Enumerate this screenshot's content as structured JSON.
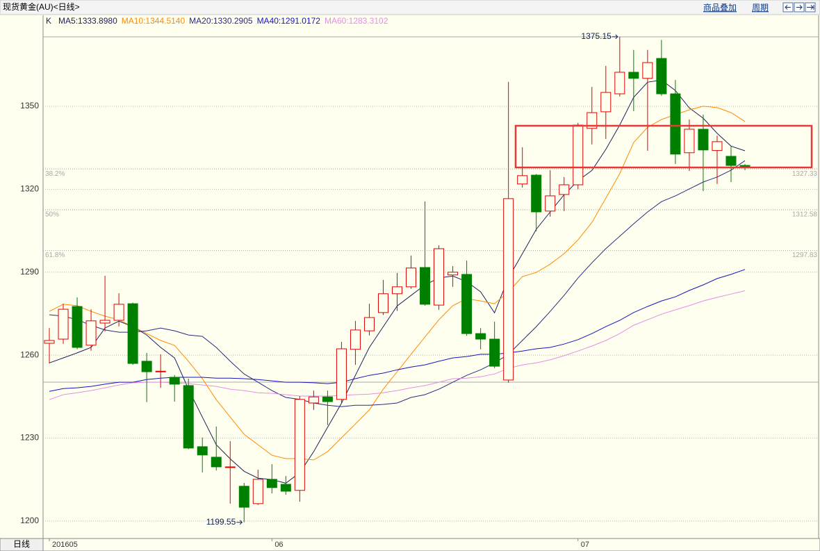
{
  "header": {
    "title": "现货黄金(AU)<日线>",
    "overlay": "商品叠加",
    "period": "周期"
  },
  "footer": {
    "tab": "日线"
  },
  "chart_data": {
    "type": "candlestick",
    "candle_name": "K",
    "up_color": "#e00000",
    "down_color": "#008000",
    "ylim": [
      1193.7,
      1382.9
    ],
    "yticks": [
      1200,
      1230,
      1260,
      1290,
      1320,
      1350
    ],
    "grid": true,
    "categories": [
      "201605",
      null,
      null,
      null,
      null,
      null,
      null,
      null,
      null,
      null,
      null,
      null,
      null,
      null,
      null,
      null,
      "06",
      null,
      null,
      null,
      null,
      null,
      null,
      null,
      null,
      null,
      null,
      null,
      null,
      null,
      null,
      null,
      null,
      null,
      null,
      null,
      null,
      null,
      "07",
      null,
      null,
      null,
      null,
      null,
      null,
      null,
      null,
      null,
      null,
      null,
      null
    ],
    "open": [
      1264.3,
      1265.8,
      1277.6,
      1263.6,
      1271.6,
      1272.6,
      1278.6,
      1257.8,
      1254.0,
      1252.0,
      1249.0,
      1226.9,
      1223.1,
      1219.4,
      1212.6,
      1206.3,
      1215.1,
      1213.3,
      1211.1,
      1242.7,
      1244.9,
      1244.0,
      1262.1,
      1268.8,
      1275.4,
      1282.2,
      1284.7,
      1291.7,
      1278.1,
      1289.0,
      1289.2,
      1267.8,
      1265.8,
      1251.0,
      1321.9,
      1325.1,
      1312.1,
      1318.1,
      1321.6,
      1342.0,
      1348.0,
      1354.5,
      1362.3,
      1360.1,
      1367.3,
      1354.5,
      1333.2,
      1341.7,
      1334.0,
      1331.9,
      1328.6
    ],
    "high": [
      1269.8,
      1278.6,
      1280.9,
      1276.6,
      1288.7,
      1282.4,
      1279.0,
      1260.8,
      1260.3,
      1252.8,
      1251.5,
      1230.2,
      1234.2,
      1228.9,
      1213.8,
      1218.6,
      1220.6,
      1216.3,
      1245.2,
      1247.2,
      1247.2,
      1264.8,
      1272.4,
      1278.6,
      1287.2,
      1289.7,
      1296.0,
      1315.6,
      1299.7,
      1292.2,
      1294.2,
      1269.8,
      1272.1,
      1358.8,
      1335.2,
      1325.5,
      1326.9,
      1324.4,
      1344.0,
      1357.0,
      1364.6,
      1375.15,
      1370.4,
      1370.4,
      1374.0,
      1359.5,
      1345.2,
      1347.0,
      1339.4,
      1335.6,
      1329.1
    ],
    "low": [
      1257.0,
      1264.1,
      1262.1,
      1261.6,
      1268.6,
      1270.4,
      1256.5,
      1243.0,
      1248.2,
      1243.2,
      1226.0,
      1217.6,
      1218.3,
      1206.3,
      1199.55,
      1205.8,
      1210.0,
      1209.5,
      1207.0,
      1240.2,
      1234.7,
      1242.7,
      1256.5,
      1267.1,
      1274.5,
      1276.0,
      1284.0,
      1277.9,
      1276.4,
      1284.7,
      1267.0,
      1262.1,
      1255.3,
      1250.0,
      1320.6,
      1304.8,
      1310.1,
      1312.1,
      1320.0,
      1336.2,
      1338.2,
      1353.5,
      1348.2,
      1333.9,
      1353.8,
      1329.1,
      1326.6,
      1319.3,
      1321.9,
      1322.6,
      1326.9
    ],
    "close": [
      1265.3,
      1276.6,
      1262.8,
      1272.4,
      1272.6,
      1278.4,
      1257.0,
      1254.0,
      1254.2,
      1249.5,
      1226.4,
      1223.9,
      1219.6,
      1219.6,
      1205.0,
      1215.1,
      1212.1,
      1210.8,
      1244.0,
      1244.9,
      1243.2,
      1262.3,
      1269.1,
      1273.6,
      1282.2,
      1284.7,
      1291.5,
      1278.4,
      1298.5,
      1290.0,
      1267.8,
      1265.8,
      1256.0,
      1316.6,
      1324.9,
      1311.8,
      1317.6,
      1321.6,
      1343.2,
      1347.7,
      1355.0,
      1362.3,
      1360.1,
      1365.8,
      1354.5,
      1332.7,
      1341.7,
      1334.2,
      1337.2,
      1328.6,
      1327.9
    ],
    "series": [
      {
        "name": "MA5:1333.8980",
        "color": "#1e1e5a",
        "values": [
          1257.2,
          1259.0,
          1260.8,
          1262.8,
          1269.8,
          1272.3,
          1270.3,
          1267.3,
          1262.8,
          1259.0,
          1247.7,
          1237.6,
          1227.6,
          1222.5,
          1218.0,
          1215.5,
          1215.0,
          1213.7,
          1217.5,
          1225.1,
          1233.9,
          1242.6,
          1252.7,
          1262.8,
          1270.3,
          1277.8,
          1281.6,
          1285.4,
          1287.9,
          1288.6,
          1286.6,
          1282.9,
          1275.3,
          1287.9,
          1296.7,
          1305.5,
          1311.8,
          1318.0,
          1323.1,
          1326.8,
          1334.4,
          1343.2,
          1353.2,
          1358.7,
          1359.5,
          1355.7,
          1349.4,
          1345.7,
          1340.2,
          1335.6,
          1333.9
        ]
      },
      {
        "name": "MA10:1344.5140",
        "color": "#ff8a00",
        "values": [
          1275.8,
          1278.4,
          1277.9,
          1275.8,
          1274.1,
          1272.8,
          1270.3,
          1267.8,
          1265.3,
          1263.5,
          1257.8,
          1251.5,
          1243.9,
          1237.6,
          1231.4,
          1227.6,
          1223.8,
          1222.6,
          1222.6,
          1222.1,
          1225.1,
          1230.1,
          1235.1,
          1240.2,
          1247.7,
          1254.0,
          1260.3,
          1266.6,
          1272.8,
          1277.9,
          1280.4,
          1279.6,
          1278.6,
          1282.9,
          1288.4,
          1289.9,
          1292.9,
          1296.7,
          1301.7,
          1308.0,
          1316.8,
          1325.6,
          1336.9,
          1342.4,
          1345.2,
          1347.0,
          1348.7,
          1350.0,
          1349.5,
          1347.7,
          1344.5
        ]
      },
      {
        "name": "MA20:1330.2905",
        "color": "#2a2a80",
        "values": [
          1274.6,
          1274.1,
          1272.8,
          1270.8,
          1269.1,
          1268.3,
          1268.3,
          1268.8,
          1269.8,
          1268.8,
          1267.3,
          1266.8,
          1262.8,
          1257.8,
          1253.2,
          1250.2,
          1247.2,
          1244.7,
          1244.0,
          1242.7,
          1241.9,
          1241.4,
          1241.9,
          1241.9,
          1242.2,
          1242.7,
          1244.7,
          1245.7,
          1247.7,
          1250.2,
          1252.7,
          1254.7,
          1257.2,
          1260.3,
          1265.3,
          1270.3,
          1275.8,
          1281.6,
          1287.9,
          1293.4,
          1298.5,
          1303.0,
          1307.5,
          1311.8,
          1315.5,
          1317.6,
          1320.1,
          1322.6,
          1324.4,
          1326.9,
          1330.3
        ]
      },
      {
        "name": "MA40:1291.0172",
        "color": "#1414c0",
        "values": [
          1246.9,
          1247.9,
          1248.2,
          1248.7,
          1249.5,
          1250.2,
          1250.2,
          1251.2,
          1251.7,
          1252.0,
          1252.0,
          1252.0,
          1251.7,
          1251.7,
          1251.5,
          1251.2,
          1250.7,
          1250.2,
          1250.2,
          1250.0,
          1249.7,
          1250.2,
          1251.5,
          1252.7,
          1253.5,
          1254.7,
          1255.7,
          1256.5,
          1257.8,
          1259.0,
          1259.5,
          1260.3,
          1260.3,
          1260.8,
          1261.5,
          1262.3,
          1262.8,
          1264.0,
          1265.6,
          1267.8,
          1270.3,
          1272.6,
          1275.4,
          1277.6,
          1279.6,
          1281.1,
          1283.4,
          1285.4,
          1287.7,
          1289.2,
          1291.0
        ]
      },
      {
        "name": "MA60:1283.3102",
        "color": "#e48ee4",
        "values": [
          1243.9,
          1245.7,
          1246.4,
          1247.2,
          1248.2,
          1249.2,
          1250.0,
          1250.2,
          1250.2,
          1250.0,
          1249.7,
          1249.2,
          1248.7,
          1247.7,
          1247.2,
          1246.4,
          1246.2,
          1245.7,
          1245.2,
          1245.2,
          1245.2,
          1245.4,
          1245.7,
          1245.9,
          1246.4,
          1247.2,
          1248.2,
          1249.0,
          1250.2,
          1251.5,
          1251.7,
          1252.2,
          1253.2,
          1255.2,
          1256.5,
          1257.2,
          1258.3,
          1259.8,
          1261.5,
          1263.3,
          1265.3,
          1267.8,
          1270.8,
          1272.8,
          1274.8,
          1276.4,
          1277.9,
          1279.6,
          1280.9,
          1282.1,
          1283.3
        ]
      }
    ],
    "fib_levels": [
      {
        "label": "38.2%",
        "value": 1327.33
      },
      {
        "label": "50%",
        "value": 1312.58
      },
      {
        "label": "61.8%",
        "value": 1297.83
      }
    ]
  }
}
